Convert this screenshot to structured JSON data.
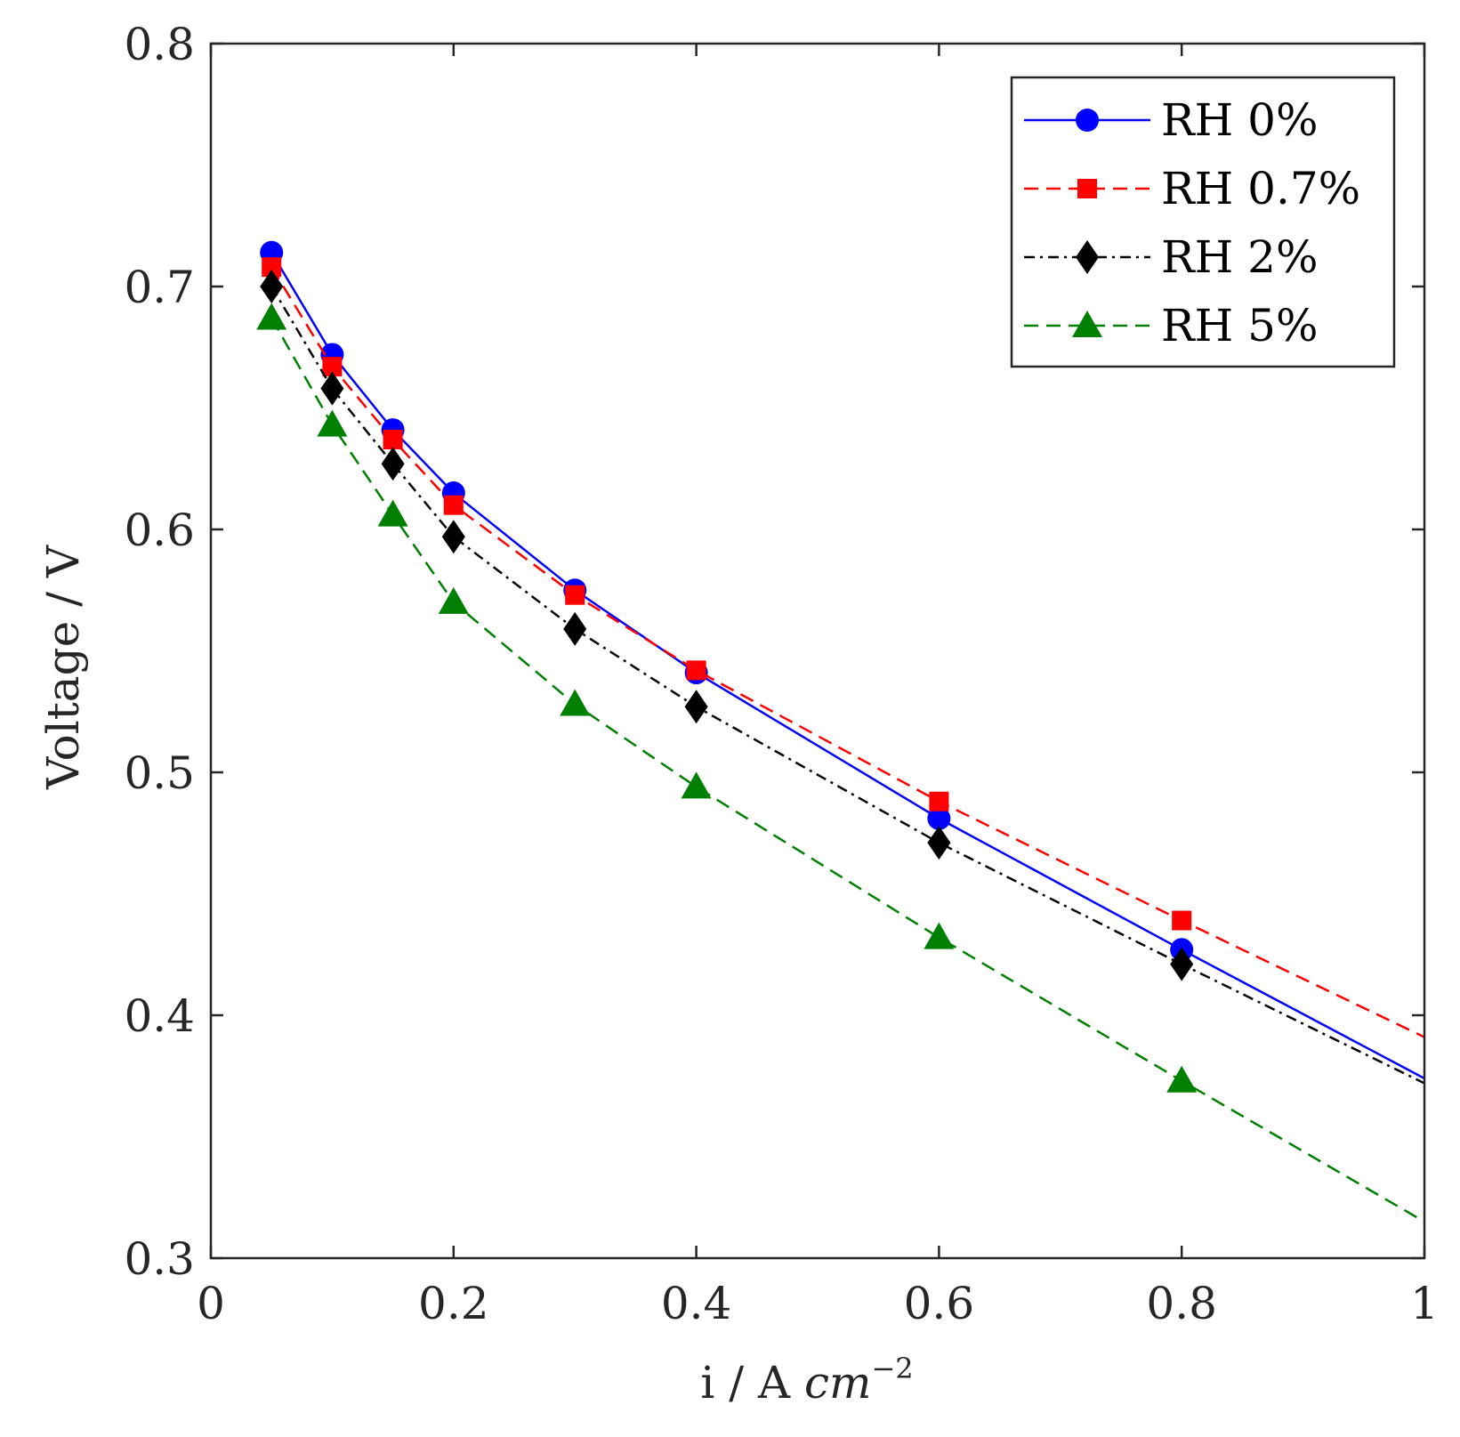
{
  "chart_data": {
    "type": "line",
    "title": "",
    "xlabel": {
      "main": "i / A ",
      "unit": "cm",
      "exponent": "−2"
    },
    "ylabel": "Voltage / V",
    "xlim": [
      0,
      1
    ],
    "ylim": [
      0.3,
      0.8
    ],
    "xticks": [
      0,
      0.2,
      0.4,
      0.6,
      0.8,
      1
    ],
    "xtick_labels": [
      "0",
      "0.2",
      "0.4",
      "0.6",
      "0.8",
      "1"
    ],
    "yticks": [
      0.3,
      0.4,
      0.5,
      0.6,
      0.7,
      0.8
    ],
    "ytick_labels": [
      "0.3",
      "0.4",
      "0.5",
      "0.6",
      "0.7",
      "0.8"
    ],
    "grid": false,
    "legend_position": "top-right",
    "x": [
      0.05,
      0.1,
      0.15,
      0.2,
      0.3,
      0.4,
      0.6,
      0.8
    ],
    "series": [
      {
        "name": "RH 0%",
        "color": "#0000ff",
        "dash": "solid",
        "marker": "circle",
        "values": [
          0.714,
          0.672,
          0.641,
          0.615,
          0.575,
          0.541,
          0.481,
          0.427
        ],
        "end_value": 0.374
      },
      {
        "name": "RH 0.7%",
        "color": "#ff0000",
        "dash": "dashed",
        "marker": "square",
        "values": [
          0.708,
          0.667,
          0.637,
          0.61,
          0.573,
          0.542,
          0.488,
          0.439
        ],
        "end_value": 0.391
      },
      {
        "name": "RH 2%",
        "color": "#000000",
        "dash": "dashdot",
        "marker": "diamond",
        "values": [
          0.7,
          0.658,
          0.627,
          0.597,
          0.559,
          0.527,
          0.471,
          0.421
        ],
        "end_value": 0.372
      },
      {
        "name": "RH 5%",
        "color": "#008000",
        "dash": "dashed",
        "marker": "triangle",
        "values": [
          0.687,
          0.643,
          0.606,
          0.57,
          0.528,
          0.494,
          0.432,
          0.373
        ],
        "end_value": 0.315
      }
    ]
  }
}
